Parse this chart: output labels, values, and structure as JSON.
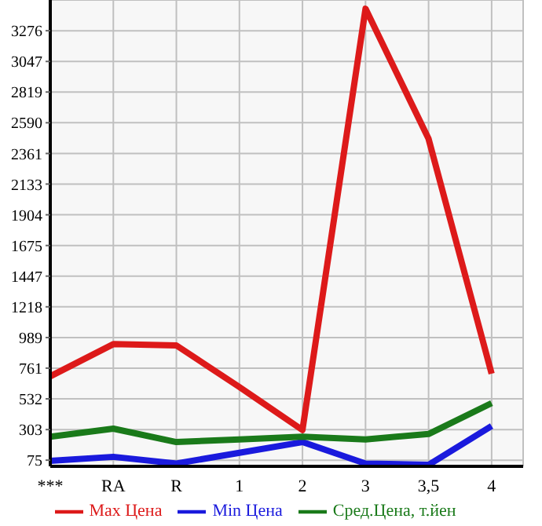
{
  "chart_data": {
    "type": "line",
    "categories": [
      "***",
      "RA",
      "R",
      "1",
      "2",
      "3",
      "3,5",
      "4"
    ],
    "series": [
      {
        "name": "Max Цена",
        "color": "#dd1a1a",
        "values": [
          700,
          940,
          930,
          620,
          300,
          3440,
          2470,
          720
        ]
      },
      {
        "name": "Min Цена",
        "color": "#1a1add",
        "values": [
          70,
          100,
          50,
          130,
          210,
          50,
          40,
          330
        ]
      },
      {
        "name": "Сред.Цена, т.йен",
        "color": "#1a7a1a",
        "values": [
          250,
          310,
          210,
          230,
          250,
          230,
          270,
          500
        ]
      }
    ],
    "ylim": [
      29,
      3505
    ],
    "yticks": [
      75,
      303,
      532,
      761,
      989,
      1218,
      1447,
      1675,
      1904,
      2133,
      2361,
      2590,
      2819,
      3047,
      3276
    ],
    "grid": true,
    "legend": "bottom",
    "marker": "none",
    "line_style": "solid"
  }
}
